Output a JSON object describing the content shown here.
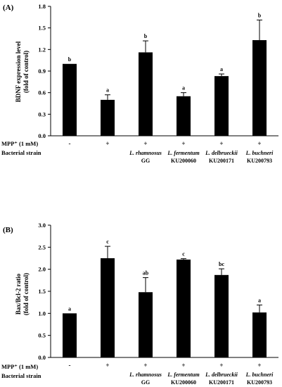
{
  "chart_data": [
    {
      "type": "bar",
      "panel_label": "(A)",
      "ylabel_line1": "BDNF expression level",
      "ylabel_line2": "(fold of control)",
      "ylim": [
        0,
        1.8
      ],
      "yticks": [
        "0.0",
        "0.3",
        "0.6",
        "0.9",
        "1.2",
        "1.5",
        "1.8"
      ],
      "values": [
        1.0,
        0.5,
        1.16,
        0.55,
        0.83,
        1.33
      ],
      "errors": [
        0.0,
        0.07,
        0.16,
        0.05,
        0.03,
        0.28
      ],
      "letters": [
        "b",
        "a",
        "b",
        "a",
        "a",
        "b"
      ],
      "mpp_label": "MPP⁺ (1 mM)",
      "strain_label": "Bacterial strain",
      "mpp_values": [
        "-",
        "+",
        "+",
        "+",
        "+",
        "+"
      ],
      "strains": [
        {
          "name": "",
          "code": ""
        },
        {
          "name": "",
          "code": ""
        },
        {
          "name": "L. rhamnosus",
          "code": "GG"
        },
        {
          "name": "L. fermentum",
          "code": "KU200060"
        },
        {
          "name": "L. delbrueckii",
          "code": "KU200171"
        },
        {
          "name": "L. buchneri",
          "code": "KU200793"
        }
      ]
    },
    {
      "type": "bar",
      "panel_label": "(B)",
      "ylabel_line1": "Bax/Bcl-2 ratio",
      "ylabel_line2": "(fold of control)",
      "ylim": [
        0,
        3.0
      ],
      "yticks": [
        "0.0",
        "0.5",
        "1.0",
        "1.5",
        "2.0",
        "2.5",
        "3.0"
      ],
      "values": [
        1.0,
        2.25,
        1.48,
        2.22,
        1.87,
        1.02
      ],
      "errors": [
        0.0,
        0.27,
        0.33,
        0.02,
        0.14,
        0.17
      ],
      "letters": [
        "a",
        "c",
        "ab",
        "c",
        "bc",
        "a"
      ],
      "mpp_label": "MPP⁺ (1 mM)",
      "strain_label": "Bacterial strain",
      "mpp_values": [
        "-",
        "+",
        "+",
        "+",
        "+",
        "+"
      ],
      "strains": [
        {
          "name": "",
          "code": ""
        },
        {
          "name": "",
          "code": ""
        },
        {
          "name": "L. rhamnosus",
          "code": "GG"
        },
        {
          "name": "L. fermentum",
          "code": "KU200060"
        },
        {
          "name": "L. delbrueckii",
          "code": "KU200171"
        },
        {
          "name": "L. buchneri",
          "code": "KU200793"
        }
      ]
    }
  ]
}
